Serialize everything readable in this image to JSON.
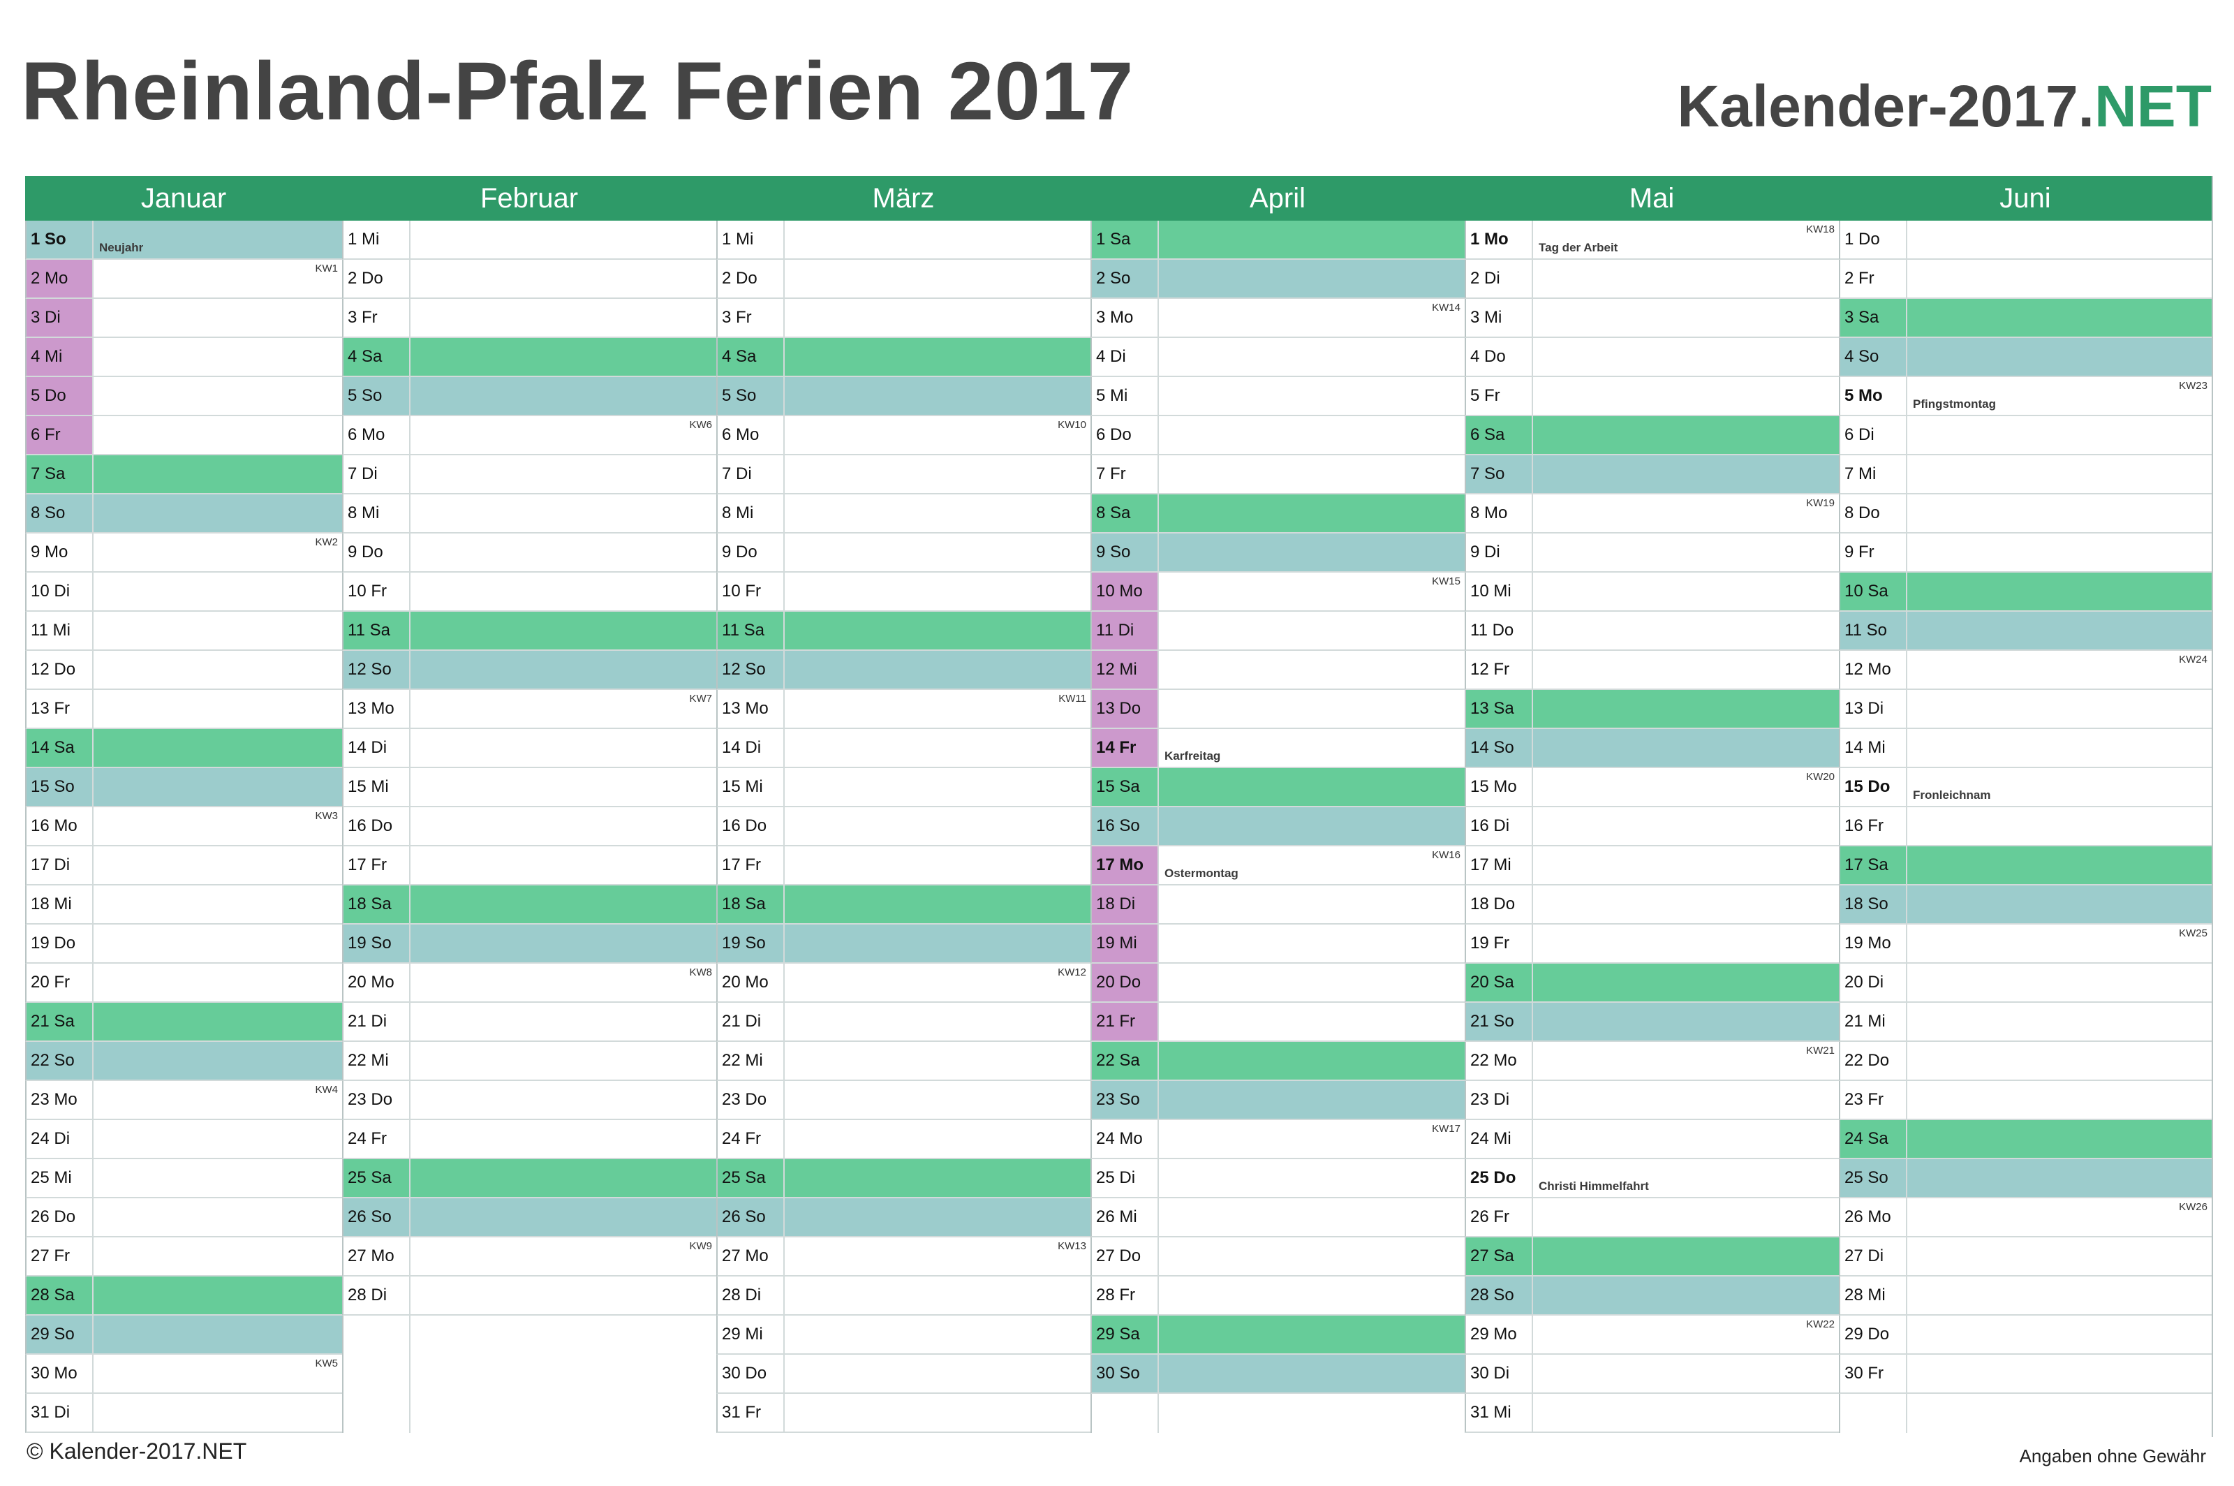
{
  "header": {
    "title": "Rheinland-Pfalz Ferien 2017",
    "brand_main": "Kalender-2017.",
    "brand_accent": "NET"
  },
  "colors": {
    "header_green": "#2e9a68",
    "saturday": "#66cc99",
    "sunday": "#9ccccc",
    "vacation": "#cc99cc"
  },
  "months": [
    {
      "name": "Januar",
      "days": [
        {
          "label": "1 So",
          "type": "sun",
          "bold": true,
          "holiday": "Neujahr"
        },
        {
          "label": "2 Mo",
          "vacation": true,
          "kw": "KW1"
        },
        {
          "label": "3 Di",
          "vacation": true
        },
        {
          "label": "4 Mi",
          "vacation": true
        },
        {
          "label": "5 Do",
          "vacation": true
        },
        {
          "label": "6 Fr",
          "vacation": true
        },
        {
          "label": "7 Sa",
          "type": "sat"
        },
        {
          "label": "8 So",
          "type": "sun"
        },
        {
          "label": "9 Mo",
          "kw": "KW2"
        },
        {
          "label": "10 Di"
        },
        {
          "label": "11 Mi"
        },
        {
          "label": "12 Do"
        },
        {
          "label": "13 Fr"
        },
        {
          "label": "14 Sa",
          "type": "sat"
        },
        {
          "label": "15 So",
          "type": "sun"
        },
        {
          "label": "16 Mo",
          "kw": "KW3"
        },
        {
          "label": "17 Di"
        },
        {
          "label": "18 Mi"
        },
        {
          "label": "19 Do"
        },
        {
          "label": "20 Fr"
        },
        {
          "label": "21 Sa",
          "type": "sat"
        },
        {
          "label": "22 So",
          "type": "sun"
        },
        {
          "label": "23 Mo",
          "kw": "KW4"
        },
        {
          "label": "24 Di"
        },
        {
          "label": "25 Mi"
        },
        {
          "label": "26 Do"
        },
        {
          "label": "27 Fr"
        },
        {
          "label": "28 Sa",
          "type": "sat"
        },
        {
          "label": "29 So",
          "type": "sun"
        },
        {
          "label": "30 Mo",
          "kw": "KW5"
        },
        {
          "label": "31 Di"
        }
      ]
    },
    {
      "name": "Februar",
      "days": [
        {
          "label": "1 Mi"
        },
        {
          "label": "2 Do"
        },
        {
          "label": "3 Fr"
        },
        {
          "label": "4 Sa",
          "type": "sat"
        },
        {
          "label": "5 So",
          "type": "sun"
        },
        {
          "label": "6 Mo",
          "kw": "KW6"
        },
        {
          "label": "7 Di"
        },
        {
          "label": "8 Mi"
        },
        {
          "label": "9 Do"
        },
        {
          "label": "10 Fr"
        },
        {
          "label": "11 Sa",
          "type": "sat"
        },
        {
          "label": "12 So",
          "type": "sun"
        },
        {
          "label": "13 Mo",
          "kw": "KW7"
        },
        {
          "label": "14 Di"
        },
        {
          "label": "15 Mi"
        },
        {
          "label": "16 Do"
        },
        {
          "label": "17 Fr"
        },
        {
          "label": "18 Sa",
          "type": "sat"
        },
        {
          "label": "19 So",
          "type": "sun"
        },
        {
          "label": "20 Mo",
          "kw": "KW8"
        },
        {
          "label": "21 Di"
        },
        {
          "label": "22 Mi"
        },
        {
          "label": "23 Do"
        },
        {
          "label": "24 Fr"
        },
        {
          "label": "25 Sa",
          "type": "sat"
        },
        {
          "label": "26 So",
          "type": "sun"
        },
        {
          "label": "27 Mo",
          "kw": "KW9"
        },
        {
          "label": "28 Di"
        }
      ]
    },
    {
      "name": "März",
      "days": [
        {
          "label": "1 Mi"
        },
        {
          "label": "2 Do"
        },
        {
          "label": "3 Fr"
        },
        {
          "label": "4 Sa",
          "type": "sat"
        },
        {
          "label": "5 So",
          "type": "sun"
        },
        {
          "label": "6 Mo",
          "kw": "KW10"
        },
        {
          "label": "7 Di"
        },
        {
          "label": "8 Mi"
        },
        {
          "label": "9 Do"
        },
        {
          "label": "10 Fr"
        },
        {
          "label": "11 Sa",
          "type": "sat"
        },
        {
          "label": "12 So",
          "type": "sun"
        },
        {
          "label": "13 Mo",
          "kw": "KW11"
        },
        {
          "label": "14 Di"
        },
        {
          "label": "15 Mi"
        },
        {
          "label": "16 Do"
        },
        {
          "label": "17 Fr"
        },
        {
          "label": "18 Sa",
          "type": "sat"
        },
        {
          "label": "19 So",
          "type": "sun"
        },
        {
          "label": "20 Mo",
          "kw": "KW12"
        },
        {
          "label": "21 Di"
        },
        {
          "label": "22 Mi"
        },
        {
          "label": "23 Do"
        },
        {
          "label": "24 Fr"
        },
        {
          "label": "25 Sa",
          "type": "sat"
        },
        {
          "label": "26 So",
          "type": "sun"
        },
        {
          "label": "27 Mo",
          "kw": "KW13"
        },
        {
          "label": "28 Di"
        },
        {
          "label": "29 Mi"
        },
        {
          "label": "30 Do"
        },
        {
          "label": "31 Fr"
        }
      ]
    },
    {
      "name": "April",
      "days": [
        {
          "label": "1 Sa",
          "type": "sat"
        },
        {
          "label": "2 So",
          "type": "sun"
        },
        {
          "label": "3 Mo",
          "kw": "KW14"
        },
        {
          "label": "4 Di"
        },
        {
          "label": "5 Mi"
        },
        {
          "label": "6 Do"
        },
        {
          "label": "7 Fr"
        },
        {
          "label": "8 Sa",
          "type": "sat"
        },
        {
          "label": "9 So",
          "type": "sun"
        },
        {
          "label": "10 Mo",
          "vacation": true,
          "kw": "KW15"
        },
        {
          "label": "11 Di",
          "vacation": true
        },
        {
          "label": "12 Mi",
          "vacation": true
        },
        {
          "label": "13 Do",
          "vacation": true
        },
        {
          "label": "14 Fr",
          "vacation": true,
          "bold": true,
          "holiday": "Karfreitag"
        },
        {
          "label": "15 Sa",
          "type": "sat"
        },
        {
          "label": "16 So",
          "type": "sun"
        },
        {
          "label": "17 Mo",
          "vacation": true,
          "bold": true,
          "kw": "KW16",
          "holiday": "Ostermontag"
        },
        {
          "label": "18 Di",
          "vacation": true
        },
        {
          "label": "19 Mi",
          "vacation": true
        },
        {
          "label": "20 Do",
          "vacation": true
        },
        {
          "label": "21 Fr",
          "vacation": true
        },
        {
          "label": "22 Sa",
          "type": "sat"
        },
        {
          "label": "23 So",
          "type": "sun"
        },
        {
          "label": "24 Mo",
          "kw": "KW17"
        },
        {
          "label": "25 Di"
        },
        {
          "label": "26 Mi"
        },
        {
          "label": "27 Do"
        },
        {
          "label": "28 Fr"
        },
        {
          "label": "29 Sa",
          "type": "sat"
        },
        {
          "label": "30 So",
          "type": "sun"
        }
      ]
    },
    {
      "name": "Mai",
      "days": [
        {
          "label": "1 Mo",
          "bold": true,
          "kw": "KW18",
          "holiday": "Tag der Arbeit"
        },
        {
          "label": "2 Di"
        },
        {
          "label": "3 Mi"
        },
        {
          "label": "4 Do"
        },
        {
          "label": "5 Fr"
        },
        {
          "label": "6 Sa",
          "type": "sat"
        },
        {
          "label": "7 So",
          "type": "sun"
        },
        {
          "label": "8 Mo",
          "kw": "KW19"
        },
        {
          "label": "9 Di"
        },
        {
          "label": "10 Mi"
        },
        {
          "label": "11 Do"
        },
        {
          "label": "12 Fr"
        },
        {
          "label": "13 Sa",
          "type": "sat"
        },
        {
          "label": "14 So",
          "type": "sun"
        },
        {
          "label": "15 Mo",
          "kw": "KW20"
        },
        {
          "label": "16 Di"
        },
        {
          "label": "17 Mi"
        },
        {
          "label": "18 Do"
        },
        {
          "label": "19 Fr"
        },
        {
          "label": "20 Sa",
          "type": "sat"
        },
        {
          "label": "21 So",
          "type": "sun"
        },
        {
          "label": "22 Mo",
          "kw": "KW21"
        },
        {
          "label": "23 Di"
        },
        {
          "label": "24 Mi"
        },
        {
          "label": "25 Do",
          "bold": true,
          "holiday": "Christi Himmelfahrt"
        },
        {
          "label": "26 Fr"
        },
        {
          "label": "27 Sa",
          "type": "sat"
        },
        {
          "label": "28 So",
          "type": "sun"
        },
        {
          "label": "29 Mo",
          "kw": "KW22"
        },
        {
          "label": "30 Di"
        },
        {
          "label": "31 Mi"
        }
      ]
    },
    {
      "name": "Juni",
      "days": [
        {
          "label": "1 Do"
        },
        {
          "label": "2 Fr"
        },
        {
          "label": "3 Sa",
          "type": "sat"
        },
        {
          "label": "4 So",
          "type": "sun"
        },
        {
          "label": "5 Mo",
          "bold": true,
          "kw": "KW23",
          "holiday": "Pfingstmontag"
        },
        {
          "label": "6 Di"
        },
        {
          "label": "7 Mi"
        },
        {
          "label": "8 Do"
        },
        {
          "label": "9 Fr"
        },
        {
          "label": "10 Sa",
          "type": "sat"
        },
        {
          "label": "11 So",
          "type": "sun"
        },
        {
          "label": "12 Mo",
          "kw": "KW24"
        },
        {
          "label": "13 Di"
        },
        {
          "label": "14 Mi"
        },
        {
          "label": "15 Do",
          "bold": true,
          "holiday": "Fronleichnam"
        },
        {
          "label": "16 Fr"
        },
        {
          "label": "17 Sa",
          "type": "sat"
        },
        {
          "label": "18 So",
          "type": "sun"
        },
        {
          "label": "19 Mo",
          "kw": "KW25"
        },
        {
          "label": "20 Di"
        },
        {
          "label": "21 Mi"
        },
        {
          "label": "22 Do"
        },
        {
          "label": "23 Fr"
        },
        {
          "label": "24 Sa",
          "type": "sat"
        },
        {
          "label": "25 So",
          "type": "sun"
        },
        {
          "label": "26 Mo",
          "kw": "KW26"
        },
        {
          "label": "27 Di"
        },
        {
          "label": "28 Mi"
        },
        {
          "label": "29 Do"
        },
        {
          "label": "30 Fr"
        }
      ]
    }
  ],
  "footer": {
    "copyright": "© Kalender-2017.NET",
    "disclaimer": "Angaben ohne Gewähr"
  }
}
